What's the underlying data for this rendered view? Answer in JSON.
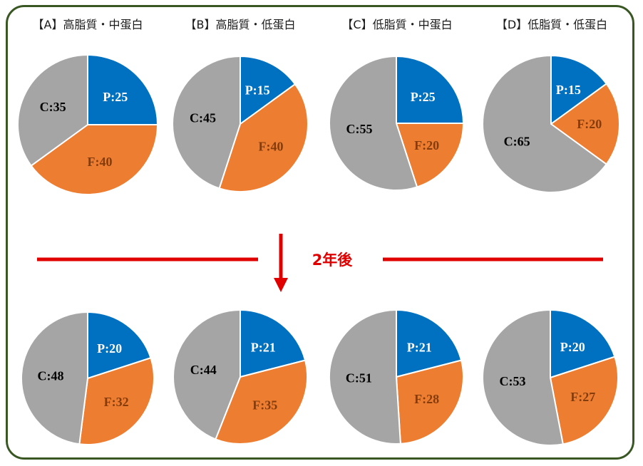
{
  "colors": {
    "P": "#0070C0",
    "F": "#ED7D31",
    "C": "#A5A5A5",
    "label_P": "#ffffff",
    "label_F": "#843C0C",
    "label_C": "#000000",
    "frame": "#385723",
    "divider": "#E00000",
    "after_text": "#E00000"
  },
  "divider": {
    "label": "2年後"
  },
  "chart_data": [
    {
      "type": "pie",
      "title": "【A】高脂質・中蛋白",
      "row": "before",
      "slices": [
        {
          "name": "P",
          "value": 25,
          "label": "P:25"
        },
        {
          "name": "F",
          "value": 40,
          "label": "F:40"
        },
        {
          "name": "C",
          "value": 35,
          "label": "C:35"
        }
      ]
    },
    {
      "type": "pie",
      "title": "【B】高脂質・低蛋白",
      "row": "before",
      "slices": [
        {
          "name": "P",
          "value": 15,
          "label": "P:15"
        },
        {
          "name": "F",
          "value": 40,
          "label": "F:40"
        },
        {
          "name": "C",
          "value": 45,
          "label": "C:45"
        }
      ]
    },
    {
      "type": "pie",
      "title": "【C】低脂質・中蛋白",
      "row": "before",
      "slices": [
        {
          "name": "P",
          "value": 25,
          "label": "P:25"
        },
        {
          "name": "F",
          "value": 20,
          "label": "F:20"
        },
        {
          "name": "C",
          "value": 55,
          "label": "C:55"
        }
      ]
    },
    {
      "type": "pie",
      "title": "【D】低脂質・低蛋白",
      "row": "before",
      "slices": [
        {
          "name": "P",
          "value": 15,
          "label": "P:15"
        },
        {
          "name": "F",
          "value": 20,
          "label": "F:20"
        },
        {
          "name": "C",
          "value": 65,
          "label": "C:65"
        }
      ]
    },
    {
      "type": "pie",
      "title": "",
      "row": "after",
      "slices": [
        {
          "name": "P",
          "value": 20,
          "label": "P:20"
        },
        {
          "name": "F",
          "value": 32,
          "label": "F:32"
        },
        {
          "name": "C",
          "value": 48,
          "label": "C:48"
        }
      ]
    },
    {
      "type": "pie",
      "title": "",
      "row": "after",
      "slices": [
        {
          "name": "P",
          "value": 21,
          "label": "P:21"
        },
        {
          "name": "F",
          "value": 35,
          "label": "F:35"
        },
        {
          "name": "C",
          "value": 44,
          "label": "C:44"
        }
      ]
    },
    {
      "type": "pie",
      "title": "",
      "row": "after",
      "slices": [
        {
          "name": "P",
          "value": 21,
          "label": "P:21"
        },
        {
          "name": "F",
          "value": 28,
          "label": "F:28"
        },
        {
          "name": "C",
          "value": 51,
          "label": "C:51"
        }
      ]
    },
    {
      "type": "pie",
      "title": "",
      "row": "after",
      "slices": [
        {
          "name": "P",
          "value": 20,
          "label": "P:20"
        },
        {
          "name": "F",
          "value": 27,
          "label": "F:27"
        },
        {
          "name": "C",
          "value": 53,
          "label": "C:53"
        }
      ]
    }
  ]
}
